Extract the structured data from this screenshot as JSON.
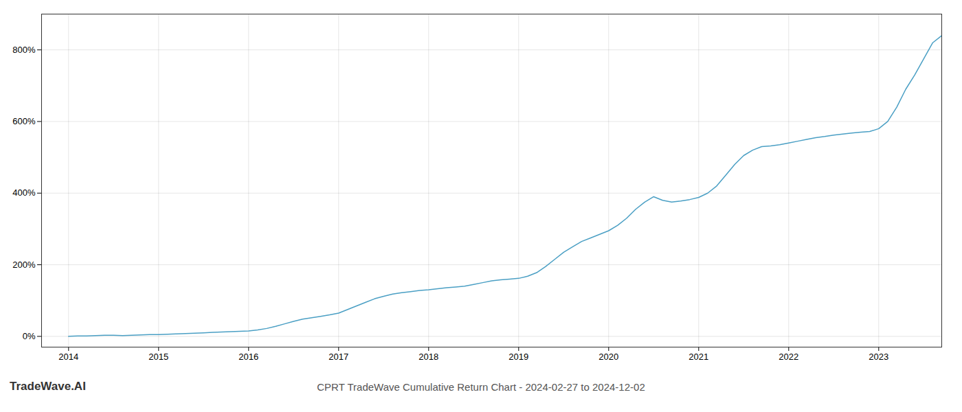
{
  "chart_data": {
    "type": "line",
    "title": "CPRT TradeWave Cumulative Return Chart - 2024-02-27 to 2024-12-02",
    "annotations": [
      "TradeWave.AI"
    ],
    "color": "#4a9fc4",
    "grid": true,
    "xlim": [
      2013.7,
      2023.7
    ],
    "xticks": [
      2014,
      2015,
      2016,
      2017,
      2018,
      2019,
      2020,
      2021,
      2022,
      2023
    ],
    "ylim": [
      -30,
      900
    ],
    "yticks": [
      {
        "value": 0,
        "label": "0%"
      },
      {
        "value": 200,
        "label": "200%"
      },
      {
        "value": 400,
        "label": "400%"
      },
      {
        "value": 600,
        "label": "600%"
      },
      {
        "value": 800,
        "label": "800%"
      }
    ],
    "x": [
      2014.0,
      2014.1,
      2014.2,
      2014.3,
      2014.4,
      2014.5,
      2014.6,
      2014.7,
      2014.8,
      2014.9,
      2015.0,
      2015.1,
      2015.2,
      2015.3,
      2015.4,
      2015.5,
      2015.6,
      2015.7,
      2015.8,
      2015.9,
      2016.0,
      2016.1,
      2016.2,
      2016.3,
      2016.4,
      2016.5,
      2016.6,
      2016.7,
      2016.8,
      2016.9,
      2017.0,
      2017.1,
      2017.2,
      2017.3,
      2017.4,
      2017.5,
      2017.6,
      2017.7,
      2017.8,
      2017.9,
      2018.0,
      2018.1,
      2018.2,
      2018.3,
      2018.4,
      2018.5,
      2018.6,
      2018.7,
      2018.8,
      2018.9,
      2019.0,
      2019.1,
      2019.2,
      2019.3,
      2019.4,
      2019.5,
      2019.6,
      2019.7,
      2019.8,
      2019.9,
      2020.0,
      2020.1,
      2020.2,
      2020.3,
      2020.4,
      2020.5,
      2020.6,
      2020.7,
      2020.8,
      2020.9,
      2021.0,
      2021.1,
      2021.2,
      2021.3,
      2021.4,
      2021.5,
      2021.6,
      2021.7,
      2021.8,
      2021.9,
      2022.0,
      2022.1,
      2022.2,
      2022.3,
      2022.4,
      2022.5,
      2022.6,
      2022.7,
      2022.8,
      2022.9,
      2023.0,
      2023.1,
      2023.2,
      2023.3,
      2023.4,
      2023.5,
      2023.6,
      2023.7
    ],
    "values": [
      0,
      1,
      1,
      2,
      3,
      3,
      2,
      3,
      4,
      5,
      5,
      6,
      7,
      8,
      9,
      10,
      11,
      12,
      13,
      14,
      15,
      18,
      22,
      28,
      35,
      42,
      48,
      52,
      56,
      60,
      65,
      75,
      85,
      95,
      105,
      112,
      118,
      122,
      125,
      128,
      130,
      133,
      136,
      138,
      140,
      145,
      150,
      155,
      158,
      160,
      162,
      168,
      178,
      195,
      215,
      235,
      250,
      265,
      275,
      285,
      295,
      310,
      330,
      355,
      375,
      390,
      380,
      375,
      378,
      382,
      388,
      400,
      420,
      450,
      480,
      505,
      520,
      530,
      532,
      535,
      540,
      545,
      550,
      555,
      558,
      562,
      565,
      568,
      570,
      572,
      580,
      600,
      640,
      690,
      730,
      775,
      820,
      840
    ]
  }
}
